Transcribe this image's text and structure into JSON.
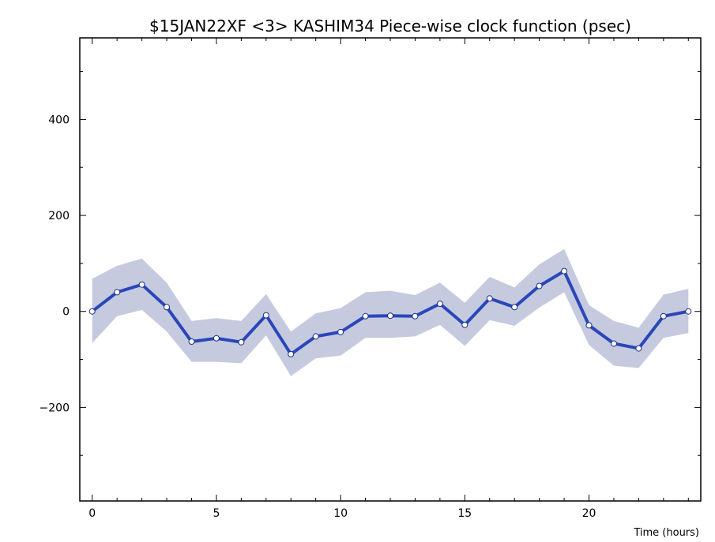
{
  "chart_data": {
    "type": "line",
    "title": "$15JAN22XF <3>  KASHIM34  Piece-wise clock function (psec)",
    "xlabel": "Time (hours)",
    "ylabel": "",
    "xlim": [
      -0.5,
      24.5
    ],
    "ylim": [
      -395,
      570
    ],
    "x_ticks": [
      0,
      5,
      10,
      15,
      20
    ],
    "y_ticks": [
      -200,
      0,
      200,
      400
    ],
    "grid": false,
    "series": [
      {
        "x": [
          0,
          1,
          2,
          3,
          4,
          5,
          6,
          7,
          8,
          9,
          10,
          11,
          12,
          13,
          14,
          15,
          16,
          17,
          18,
          19,
          20,
          21,
          22,
          23,
          24
        ],
        "values": [
          0,
          40,
          56,
          9,
          -63,
          -56,
          -64,
          -8,
          -89,
          -52,
          -43,
          -10,
          -9,
          -10,
          16,
          -28,
          27,
          9,
          53,
          84,
          -29,
          -67,
          -77,
          -10,
          0
        ],
        "upper": [
          68,
          95,
          110,
          60,
          -20,
          -14,
          -20,
          36,
          -42,
          -4,
          7,
          40,
          43,
          34,
          60,
          18,
          72,
          50,
          98,
          130,
          13,
          -20,
          -34,
          35,
          47
        ],
        "lower": [
          -66,
          -10,
          3,
          -42,
          -105,
          -105,
          -108,
          -50,
          -135,
          -98,
          -92,
          -55,
          -55,
          -52,
          -28,
          -72,
          -18,
          -30,
          8,
          40,
          -70,
          -113,
          -118,
          -55,
          -45
        ],
        "color": "#2a46b9",
        "band_color": "#c5cadf"
      }
    ]
  }
}
